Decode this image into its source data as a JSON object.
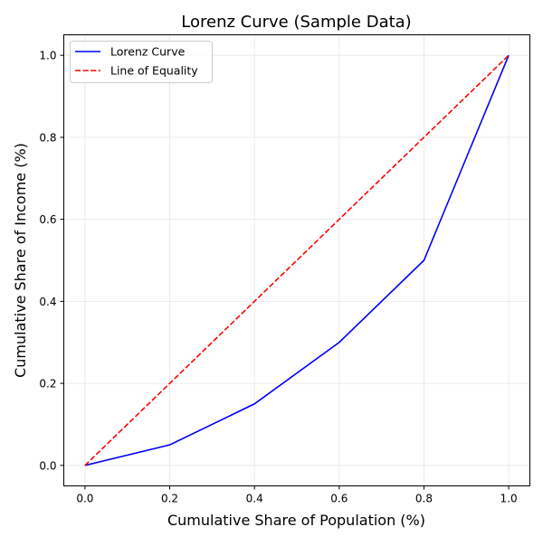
{
  "chart_data": {
    "type": "line",
    "title": "Lorenz Curve (Sample Data)",
    "xlabel": "Cumulative Share of Population (%)",
    "ylabel": "Cumulative Share of Income (%)",
    "xlim": [
      -0.05,
      1.05
    ],
    "ylim": [
      -0.05,
      1.05
    ],
    "xticks": [
      0.0,
      0.2,
      0.4,
      0.6,
      0.8,
      1.0
    ],
    "yticks": [
      0.0,
      0.2,
      0.4,
      0.6,
      0.8,
      1.0
    ],
    "xtick_labels": [
      "0.0",
      "0.2",
      "0.4",
      "0.6",
      "0.8",
      "1.0"
    ],
    "ytick_labels": [
      "0.0",
      "0.2",
      "0.4",
      "0.6",
      "0.8",
      "1.0"
    ],
    "grid": true,
    "legend_placement": "top-left",
    "series": [
      {
        "name": "Lorenz Curve",
        "color": "#0000ff",
        "style": "solid",
        "x": [
          0.0,
          0.2,
          0.4,
          0.6,
          0.8,
          1.0
        ],
        "y": [
          0.0,
          0.05,
          0.15,
          0.3,
          0.5,
          1.0
        ]
      },
      {
        "name": "Line of Equality",
        "color": "#ff0000",
        "style": "dashed",
        "x": [
          0.0,
          1.0
        ],
        "y": [
          0.0,
          1.0
        ]
      }
    ]
  }
}
